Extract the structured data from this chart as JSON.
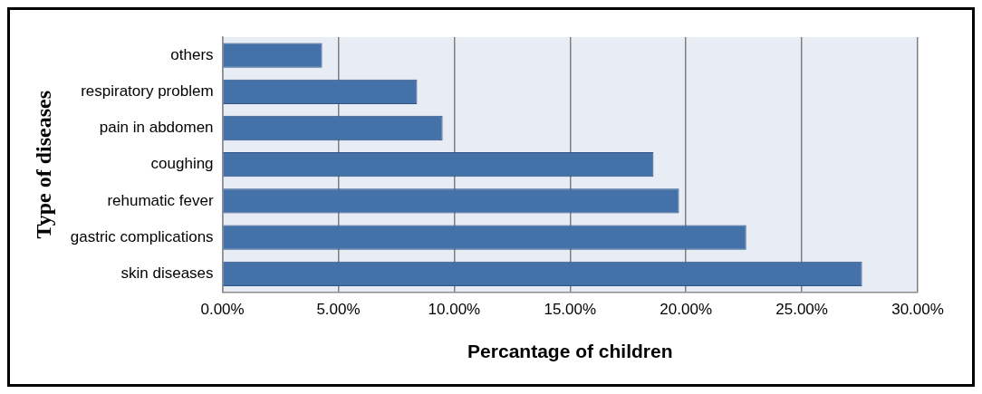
{
  "chart_data": {
    "type": "bar",
    "orientation": "horizontal",
    "xlabel": "Percantage of children",
    "ylabel": "Type of diseases",
    "categories": [
      "others",
      "respiratory problem",
      "pain in abdomen",
      "coughing",
      "rehumatic fever",
      "gastric complications",
      "skin diseases"
    ],
    "values": [
      4.3,
      8.4,
      9.5,
      18.6,
      19.7,
      22.6,
      27.6
    ],
    "color": "#4472a8",
    "xlim": [
      0,
      30
    ],
    "xticks": [
      {
        "value": 0,
        "label": "0.00%"
      },
      {
        "value": 5,
        "label": "5.00%"
      },
      {
        "value": 10,
        "label": "10.00%"
      },
      {
        "value": 15,
        "label": "15.00%"
      },
      {
        "value": 20,
        "label": "20.00%"
      },
      {
        "value": 25,
        "label": "25.00%"
      },
      {
        "value": 30,
        "label": "30.00%"
      }
    ],
    "grid": "x",
    "legend": false
  }
}
